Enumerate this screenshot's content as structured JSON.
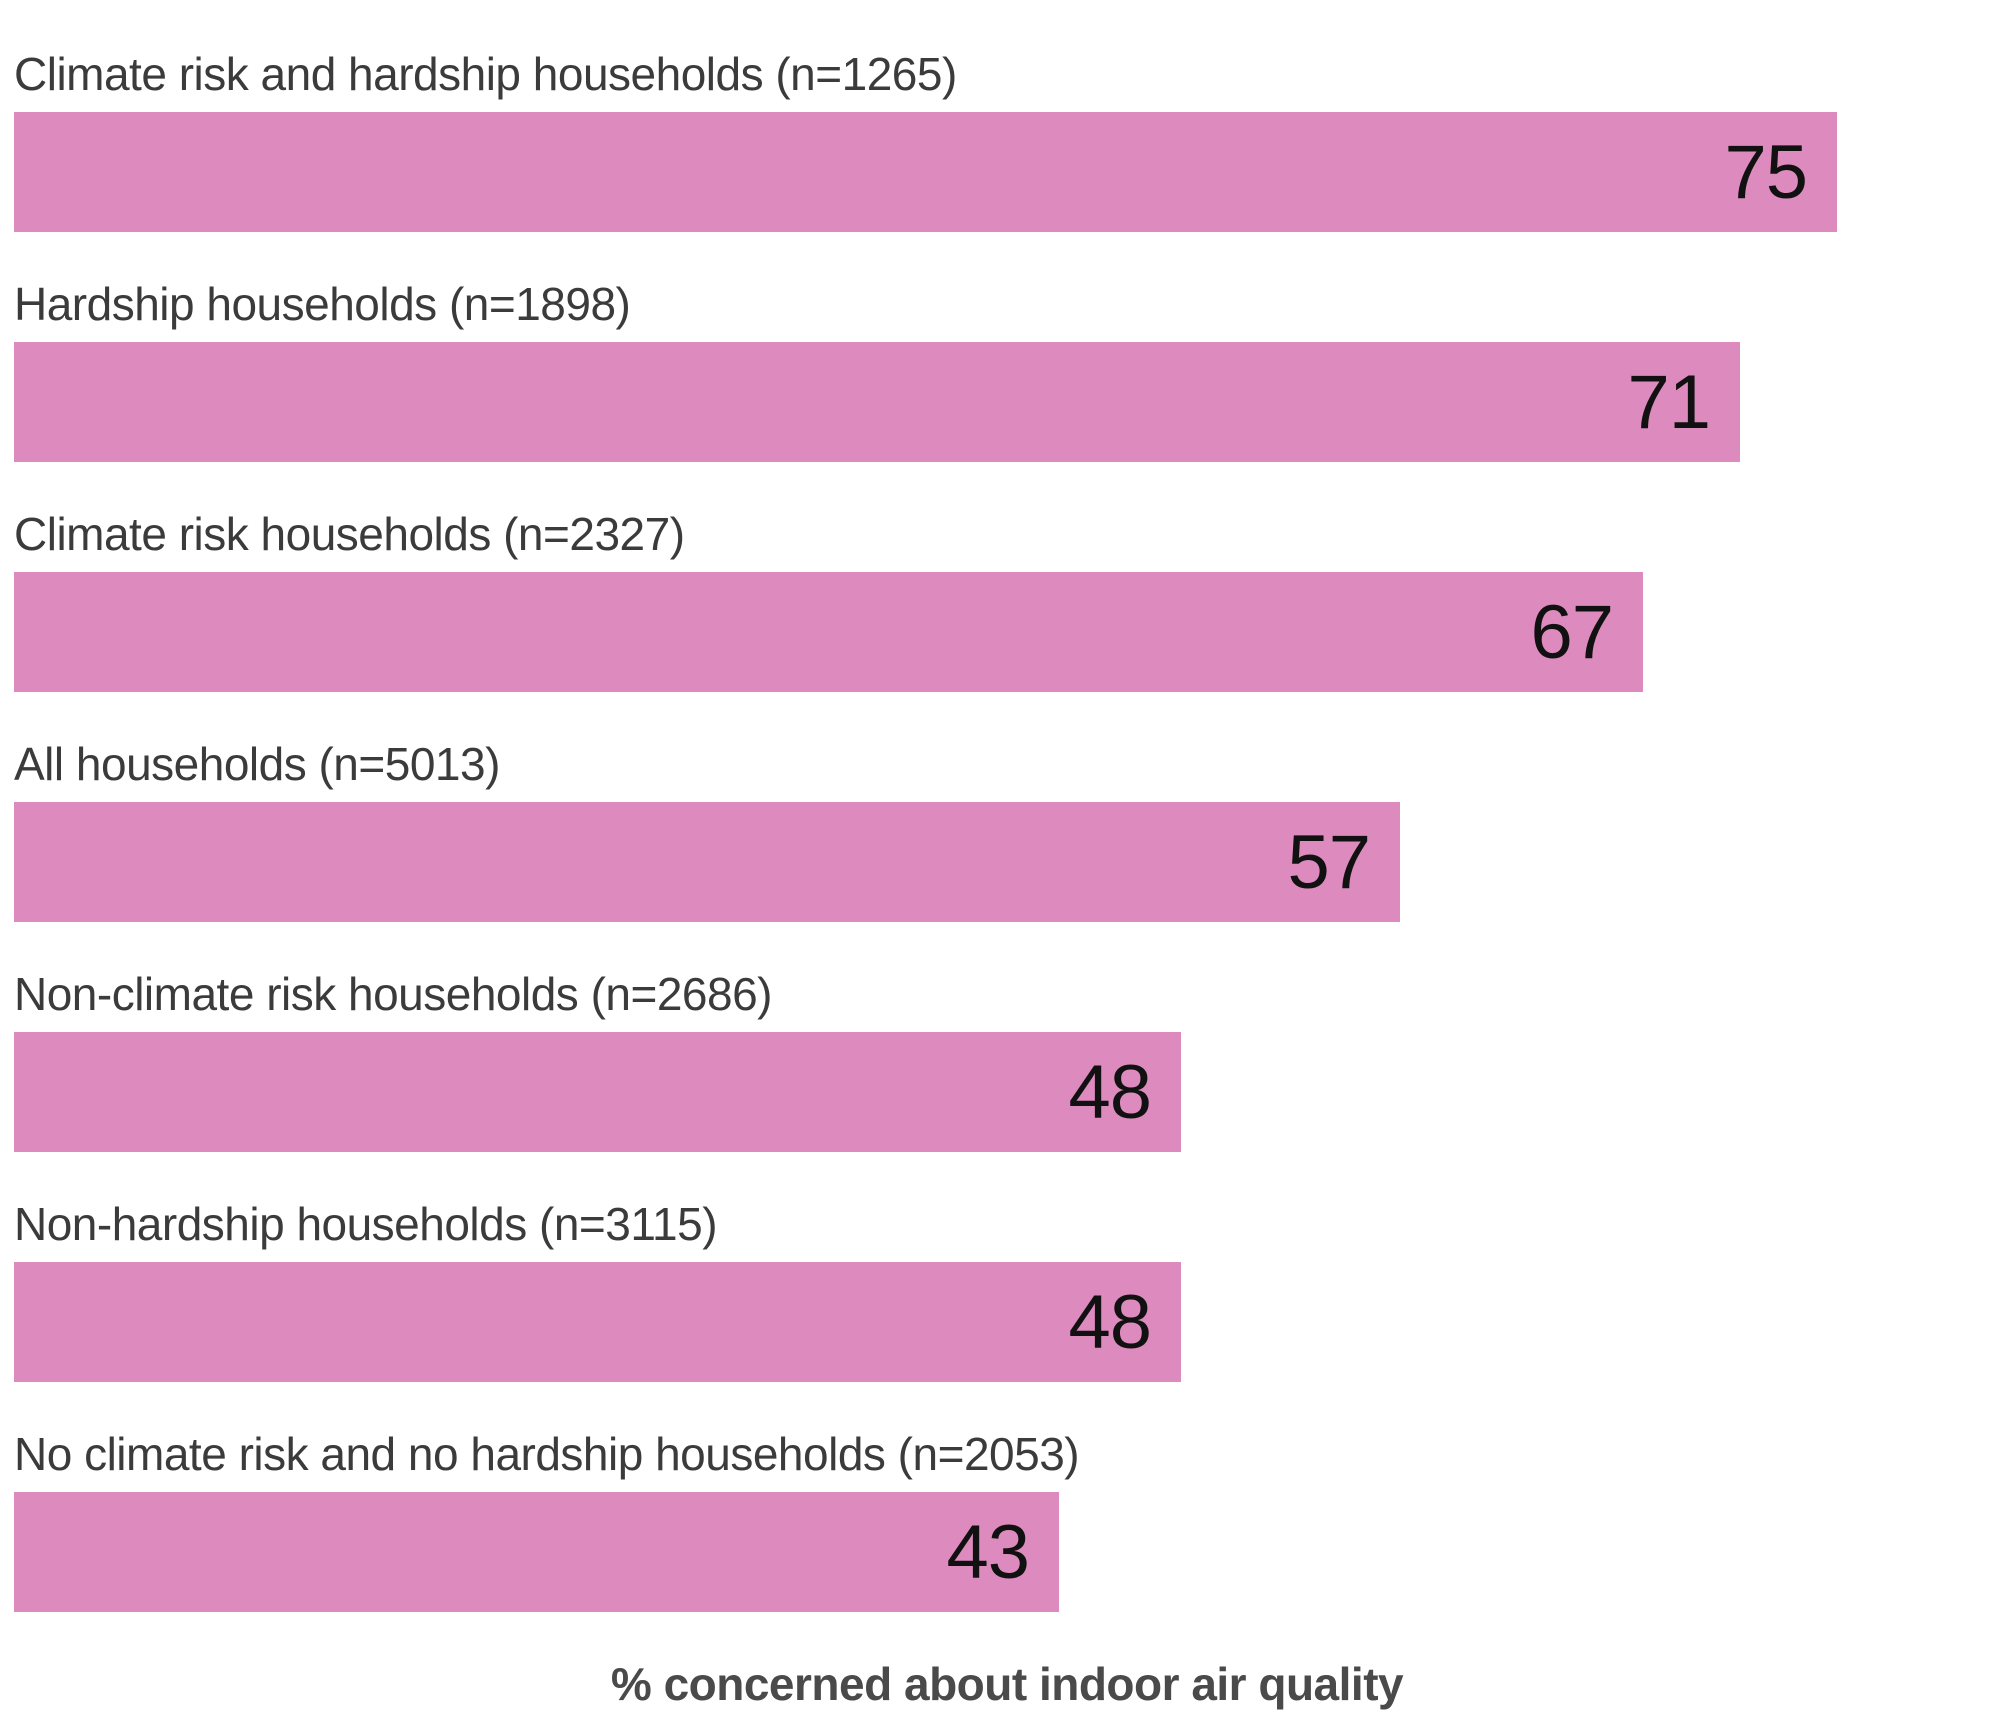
{
  "chart_data": {
    "type": "bar",
    "orientation": "horizontal",
    "categories": [
      "Climate risk and hardship households (n=1265)",
      "Hardship households (n=1898)",
      "Climate risk households (n=2327)",
      "All households (n=5013)",
      "Non-climate risk households (n=2686)",
      "Non-hardship households (n=3115)",
      "No climate risk and no hardship households (n=2053)"
    ],
    "values": [
      75,
      71,
      67,
      57,
      48,
      48,
      43
    ],
    "title": "",
    "xlabel": "% concerned about indoor air quality",
    "ylabel": "",
    "xlim": [
      0,
      82
    ],
    "grid": false,
    "legend": false,
    "value_labels_position": "inside-end",
    "colors": {
      "bar": "#dd8bbe",
      "category_label": "#3b3b3b",
      "value_label": "#111111",
      "axis_label": "#4a4a4a",
      "background": "#ffffff"
    }
  }
}
